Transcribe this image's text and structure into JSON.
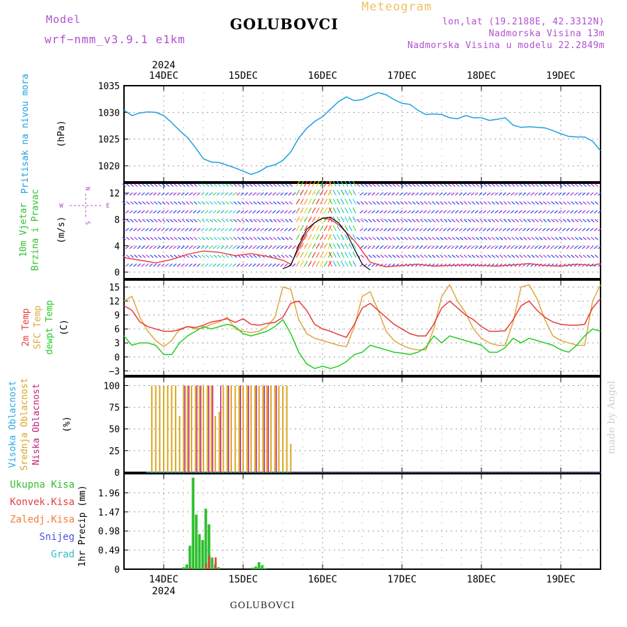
{
  "header": {
    "model_label": "Model",
    "model_name": "wrf−nmm_v3.9.1  e1km",
    "station": "GOLUBOVCI",
    "product": "Meteogram",
    "lonlat": "lon,lat (19.2188E, 42.3312N)",
    "elevation": "Nadmorska Visina 13m",
    "model_elevation": "Nadmorska Visina u modelu 22.2849m",
    "footer_station": "GOLUBOVCI",
    "watermark": "made by Angel"
  },
  "colors": {
    "pressure": "#1ea0e0",
    "temp2m": "#e83a3a",
    "sfc_temp": "#e0a640",
    "dewpoint": "#22cc22",
    "total_precip": "#2fbf2f",
    "conv_precip": "#e34040",
    "frozen_precip": "#f07f3a",
    "snow": "#5050e6",
    "graupel": "#30c0c0",
    "mid_cloud": "#daa520",
    "low_cloud": "#c0207a",
    "high_cloud": "#28a8e0",
    "label_purple": "#b050d0",
    "label_orange": "#f0c060"
  },
  "chart_data": [
    {
      "type": "line",
      "panel": "pressure",
      "ylabel_lines": [
        "Pritisak na nivou mora"
      ],
      "unit": "(hPa)",
      "ylim": [
        1017,
        1035
      ],
      "yticks": [
        1020,
        1025,
        1030,
        1035
      ],
      "xlim": [
        13.5,
        19.5
      ],
      "top_year": "2024",
      "top_ticks": [
        "14DEC",
        "15DEC",
        "16DEC",
        "17DEC",
        "18DEC",
        "19DEC"
      ],
      "series": [
        {
          "x": [
            13.5,
            13.6,
            13.7,
            13.8,
            13.9,
            14.0,
            14.1,
            14.2,
            14.3,
            14.4,
            14.5,
            14.6,
            14.7,
            14.8,
            14.9,
            15.0,
            15.1,
            15.2,
            15.3,
            15.4,
            15.5,
            15.6,
            15.7,
            15.8,
            15.9,
            16.0,
            16.1,
            16.2,
            16.3,
            16.4,
            16.5,
            16.6,
            16.7,
            16.8,
            16.9,
            17.0,
            17.1,
            17.2,
            17.3,
            17.4,
            17.5,
            17.6,
            17.7,
            17.8,
            17.9,
            18.0,
            18.1,
            18.2,
            18.3,
            18.4,
            18.5,
            18.6,
            18.7,
            18.8,
            18.9,
            19.0,
            19.1,
            19.2,
            19.3,
            19.4,
            19.5
          ],
          "y": [
            1030.4,
            1029.4,
            1029.9,
            1030.1,
            1030.0,
            1029.4,
            1028.1,
            1026.6,
            1025.3,
            1023.4,
            1021.3,
            1020.7,
            1020.6,
            1020.1,
            1019.6,
            1019.0,
            1018.4,
            1018.9,
            1019.8,
            1020.2,
            1021.0,
            1022.6,
            1025.2,
            1027.0,
            1028.3,
            1029.2,
            1030.6,
            1032.0,
            1032.9,
            1032.2,
            1032.4,
            1033.1,
            1033.7,
            1033.3,
            1032.4,
            1031.7,
            1031.5,
            1030.4,
            1029.6,
            1029.7,
            1029.6,
            1029.0,
            1028.8,
            1029.4,
            1029.0,
            1029.0,
            1028.5,
            1028.7,
            1029.0,
            1027.6,
            1027.2,
            1027.3,
            1027.2,
            1027.1,
            1026.6,
            1026.0,
            1025.5,
            1025.4,
            1025.4,
            1024.6,
            1022.8
          ]
        }
      ]
    },
    {
      "type": "line",
      "panel": "wind",
      "ylabel_lines": [
        "10m Vjetar",
        "Brzina i Pravac"
      ],
      "unit": "(m/s)",
      "compass_labels": {
        "north": "N",
        "south": "S",
        "west": "W",
        "east": "E"
      },
      "ylim": [
        -1,
        13.5
      ],
      "yticks": [
        0,
        4,
        8,
        12
      ],
      "xlim": [
        13.5,
        19.5
      ],
      "series": [
        {
          "name": "wind_speed",
          "x": [
            13.5,
            13.7,
            13.9,
            14.1,
            14.3,
            14.5,
            14.7,
            14.9,
            15.1,
            15.3,
            15.5,
            15.6,
            15.7,
            15.8,
            15.9,
            16.0,
            16.1,
            16.2,
            16.3,
            16.4,
            16.5,
            16.6,
            16.8,
            17.0,
            17.2,
            17.4,
            17.6,
            17.8,
            18.0,
            18.2,
            18.4,
            18.6,
            18.8,
            19.0,
            19.2,
            19.4,
            19.5
          ],
          "y": [
            2.2,
            1.8,
            1.4,
            1.9,
            2.7,
            3.2,
            3.0,
            2.5,
            2.8,
            2.4,
            1.8,
            1.2,
            3.5,
            6.0,
            7.5,
            8.2,
            8.0,
            7.2,
            6.0,
            4.8,
            3.2,
            1.5,
            0.8,
            1.0,
            1.2,
            0.9,
            1.0,
            1.1,
            1.0,
            0.9,
            1.1,
            1.3,
            1.0,
            0.9,
            1.2,
            1.0,
            1.3
          ]
        },
        {
          "name": "gust",
          "x": [
            15.5,
            15.6,
            15.7,
            15.8,
            15.9,
            16.0,
            16.1,
            16.2,
            16.3,
            16.4,
            16.5,
            16.6
          ],
          "y": [
            0.5,
            1.0,
            4.0,
            6.5,
            7.5,
            8.2,
            8.3,
            7.5,
            6.0,
            3.5,
            1.2,
            0.3
          ]
        }
      ]
    },
    {
      "type": "line",
      "panel": "temperature",
      "ylabel_lines": [
        "2m Temp",
        "SFC Temp",
        "dewpt Temp"
      ],
      "unit": "(C)",
      "ylim": [
        -4,
        16.5
      ],
      "yticks": [
        -3,
        0,
        3,
        6,
        9,
        12,
        15
      ],
      "xlim": [
        13.5,
        19.5
      ],
      "series": [
        {
          "name": "2m Temp",
          "x": [
            13.5,
            13.6,
            13.7,
            13.8,
            13.9,
            14.0,
            14.1,
            14.2,
            14.3,
            14.4,
            14.5,
            14.6,
            14.7,
            14.8,
            14.9,
            15.0,
            15.1,
            15.2,
            15.3,
            15.4,
            15.5,
            15.6,
            15.7,
            15.8,
            15.9,
            16.0,
            16.1,
            16.2,
            16.3,
            16.4,
            16.5,
            16.6,
            16.7,
            16.8,
            16.9,
            17.0,
            17.1,
            17.2,
            17.3,
            17.4,
            17.5,
            17.6,
            17.7,
            17.8,
            17.9,
            18.0,
            18.1,
            18.2,
            18.3,
            18.4,
            18.5,
            18.6,
            18.7,
            18.8,
            18.9,
            19.0,
            19.1,
            19.2,
            19.3,
            19.4,
            19.5
          ],
          "y": [
            11,
            10,
            7.5,
            6.5,
            6,
            5.5,
            5.5,
            5.8,
            6.5,
            6.3,
            6.8,
            7.5,
            7.8,
            8.2,
            7.4,
            8.2,
            7.0,
            6.8,
            7.2,
            7.4,
            8.5,
            11.5,
            12.0,
            10.0,
            7.0,
            6.0,
            5.5,
            4.8,
            4.2,
            7.0,
            10.5,
            11.5,
            10.0,
            8.5,
            7.0,
            6.0,
            5.0,
            4.5,
            4.5,
            7.0,
            10.5,
            12.0,
            10.5,
            9.0,
            8.0,
            6.5,
            5.5,
            5.5,
            5.6,
            8.0,
            11.0,
            12.0,
            10.0,
            8.5,
            7.5,
            7.0,
            6.8,
            6.8,
            7.0,
            10.5,
            12.5
          ]
        },
        {
          "name": "SFC Temp",
          "x": [
            13.5,
            13.6,
            13.7,
            13.8,
            13.9,
            14.0,
            14.1,
            14.2,
            14.3,
            14.4,
            14.5,
            14.6,
            14.7,
            14.8,
            14.9,
            15.0,
            15.1,
            15.2,
            15.3,
            15.4,
            15.5,
            15.6,
            15.7,
            15.8,
            15.9,
            16.0,
            16.1,
            16.2,
            16.3,
            16.4,
            16.5,
            16.6,
            16.7,
            16.8,
            16.9,
            17.0,
            17.1,
            17.2,
            17.3,
            17.4,
            17.5,
            17.6,
            17.7,
            17.8,
            17.9,
            18.0,
            18.1,
            18.2,
            18.3,
            18.4,
            18.5,
            18.6,
            18.7,
            18.8,
            18.9,
            19.0,
            19.1,
            19.2,
            19.3,
            19.4,
            19.5
          ],
          "y": [
            12,
            13,
            8.5,
            5.5,
            3.5,
            2.2,
            3.5,
            6.0,
            6.5,
            6.0,
            6.2,
            7.0,
            7.5,
            8.5,
            6.0,
            5.5,
            5.2,
            5.5,
            6.5,
            8.5,
            15.0,
            14.5,
            8.0,
            5.0,
            4.0,
            3.5,
            3.0,
            2.5,
            2.2,
            6.5,
            13.0,
            14.0,
            10.0,
            5.5,
            3.5,
            2.5,
            1.8,
            1.5,
            1.5,
            6.0,
            13.0,
            15.5,
            12.0,
            9.5,
            6.0,
            4.0,
            3.0,
            2.5,
            2.5,
            7.5,
            15.0,
            15.5,
            12.5,
            8.0,
            4.5,
            3.5,
            3.0,
            2.5,
            2.5,
            12.0,
            15.5
          ]
        },
        {
          "name": "dewpt Temp",
          "x": [
            13.5,
            13.6,
            13.7,
            13.8,
            13.9,
            14.0,
            14.1,
            14.2,
            14.3,
            14.4,
            14.5,
            14.6,
            14.7,
            14.8,
            14.9,
            15.0,
            15.1,
            15.2,
            15.3,
            15.4,
            15.5,
            15.6,
            15.7,
            15.8,
            15.9,
            16.0,
            16.1,
            16.2,
            16.3,
            16.4,
            16.5,
            16.6,
            16.7,
            16.8,
            16.9,
            17.0,
            17.1,
            17.2,
            17.3,
            17.4,
            17.5,
            17.6,
            17.7,
            17.8,
            17.9,
            18.0,
            18.1,
            18.2,
            18.3,
            18.4,
            18.5,
            18.6,
            18.7,
            18.8,
            18.9,
            19.0,
            19.1,
            19.2,
            19.3,
            19.4,
            19.5
          ],
          "y": [
            4.5,
            2.5,
            3.0,
            3.0,
            2.5,
            0.5,
            0.5,
            3.0,
            4.5,
            5.5,
            6.5,
            6.0,
            6.5,
            7.0,
            6.5,
            5.0,
            4.5,
            5.0,
            5.5,
            6.5,
            8.0,
            5.0,
            1.0,
            -1.5,
            -2.5,
            -2.0,
            -2.5,
            -2.0,
            -1.0,
            0.5,
            1.0,
            2.5,
            2.0,
            1.5,
            1.0,
            0.8,
            0.5,
            1.0,
            2.0,
            4.5,
            3.0,
            4.5,
            4.0,
            3.5,
            3.0,
            2.5,
            1.0,
            1.0,
            2.0,
            4.0,
            3.0,
            4.0,
            3.5,
            3.0,
            2.5,
            1.5,
            1.0,
            2.5,
            4.5,
            6.0,
            5.5
          ]
        }
      ]
    },
    {
      "type": "bar",
      "panel": "cloud",
      "ylabel_lines": [
        "Visoka Oblacnost",
        "Srednja Oblacnost",
        "Niska Oblacnost"
      ],
      "unit": "(%)",
      "ylim": [
        0,
        110
      ],
      "yticks": [
        0,
        25,
        50,
        75,
        100
      ],
      "xlim": [
        13.5,
        19.5
      ],
      "series": [
        {
          "name": "Srednja Oblacnost",
          "x": [
            13.85,
            13.9,
            13.95,
            14.0,
            14.05,
            14.1,
            14.15,
            14.2,
            14.25,
            14.3,
            14.35,
            14.4,
            14.45,
            14.5,
            14.55,
            14.6,
            14.65,
            14.7,
            14.75,
            14.8,
            14.85,
            14.9,
            14.95,
            15.0,
            15.05,
            15.1,
            15.15,
            15.2,
            15.25,
            15.3,
            15.35,
            15.4,
            15.45,
            15.5,
            15.55,
            15.6
          ],
          "y": [
            100,
            100,
            100,
            100,
            100,
            100,
            100,
            65,
            100,
            100,
            100,
            100,
            100,
            100,
            100,
            100,
            65,
            70,
            100,
            100,
            100,
            100,
            100,
            100,
            100,
            100,
            100,
            100,
            100,
            100,
            100,
            100,
            100,
            100,
            100,
            33
          ]
        },
        {
          "name": "Niska Oblacnost",
          "x": [
            14.25,
            14.3,
            14.4,
            14.45,
            14.55,
            14.6,
            14.7,
            14.8,
            14.95,
            15.05,
            15.15,
            15.25,
            15.3,
            15.4
          ],
          "y": [
            100,
            100,
            100,
            100,
            100,
            100,
            100,
            100,
            100,
            100,
            100,
            100,
            100,
            100
          ]
        },
        {
          "name": "Visoka Oblacnost",
          "x": [],
          "y": []
        }
      ]
    },
    {
      "type": "bar",
      "panel": "precip",
      "legend": [
        "Ukupna Kisa",
        "Konvek.Kisa",
        "Zaledj.Kisa",
        "Snijeg",
        "Grad"
      ],
      "ylabel_lines": [
        "1hr Precip (mm)"
      ],
      "ylim": [
        0,
        2.45
      ],
      "yticks": [
        0,
        0.49,
        0.98,
        1.47,
        1.96
      ],
      "ytick_labels": [
        "0",
        "0.49",
        "0.98",
        "1.47",
        "1.96"
      ],
      "xlim": [
        13.5,
        19.5
      ],
      "bottom_ticks": [
        "14DEC",
        "15DEC",
        "16DEC",
        "17DEC",
        "18DEC",
        "19DEC"
      ],
      "bottom_year": "2024",
      "series": [
        {
          "name": "Ukupna Kisa",
          "x": [
            14.25,
            14.29,
            14.33,
            14.37,
            14.41,
            14.45,
            14.49,
            14.53,
            14.57,
            14.61,
            14.65,
            14.69,
            15.12,
            15.16,
            15.2,
            15.24,
            15.28
          ],
          "y": [
            0.05,
            0.12,
            0.6,
            2.35,
            1.4,
            0.9,
            0.75,
            1.55,
            1.15,
            0.3,
            0.12,
            0.05,
            0.04,
            0.07,
            0.18,
            0.1,
            0.03
          ]
        },
        {
          "name": "Konvek.Kisa",
          "x": [
            14.33,
            14.53,
            14.57,
            14.65
          ],
          "y": [
            0.05,
            0.15,
            0.35,
            0.3
          ]
        }
      ]
    }
  ]
}
